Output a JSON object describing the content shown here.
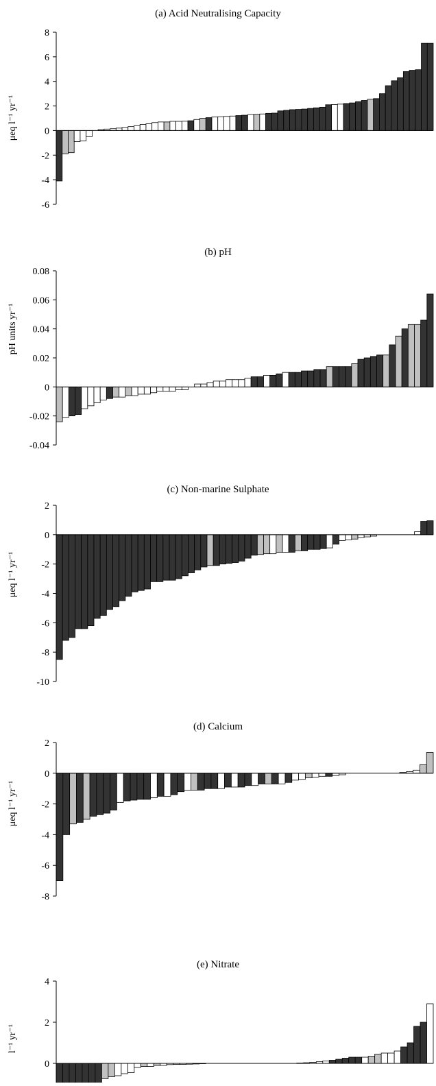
{
  "colors": {
    "dark": "#333333",
    "grey": "#c0c0c0",
    "white": "#ffffff",
    "outline": "#000000"
  },
  "chart_data": [
    {
      "type": "bar",
      "title": "(a) Acid Neutralising Capacity",
      "ylabel": "μeq l⁻¹ yr⁻¹",
      "ylim": [
        -6,
        8
      ],
      "yticks": [
        -6,
        -4,
        -2,
        0,
        2,
        4,
        6,
        8
      ],
      "ytick_labels": [
        "-6",
        "-4",
        "-2",
        "0",
        "2",
        "4",
        "6",
        "8"
      ],
      "values": [
        -4.1,
        -1.9,
        -1.8,
        -0.9,
        -0.85,
        -0.5,
        0,
        0.08,
        0.12,
        0.15,
        0.2,
        0.25,
        0.32,
        0.4,
        0.5,
        0.55,
        0.65,
        0.7,
        0.7,
        0.75,
        0.75,
        0.76,
        0.8,
        0.9,
        1.0,
        1.05,
        1.1,
        1.12,
        1.15,
        1.18,
        1.22,
        1.25,
        1.3,
        1.32,
        1.35,
        1.4,
        1.42,
        1.6,
        1.65,
        1.7,
        1.72,
        1.75,
        1.8,
        1.85,
        1.9,
        2.1,
        2.12,
        2.15,
        2.2,
        2.25,
        2.35,
        2.45,
        2.55,
        2.6,
        3.0,
        3.65,
        4.05,
        4.3,
        4.8,
        4.9,
        4.95,
        7.1,
        7.1
      ],
      "colors": [
        "dark",
        "grey",
        "grey",
        "white",
        "white",
        "white",
        "white",
        "white",
        "white",
        "white",
        "white",
        "white",
        "white",
        "white",
        "white",
        "white",
        "white",
        "white",
        "grey",
        "white",
        "white",
        "white",
        "dark",
        "white",
        "grey",
        "dark",
        "white",
        "white",
        "white",
        "white",
        "dark",
        "dark",
        "white",
        "grey",
        "white",
        "dark",
        "dark",
        "dark",
        "dark",
        "dark",
        "dark",
        "dark",
        "dark",
        "dark",
        "dark",
        "dark",
        "white",
        "white",
        "dark",
        "dark",
        "dark",
        "dark",
        "grey",
        "dark",
        "dark",
        "dark",
        "dark",
        "dark",
        "dark",
        "dark",
        "dark",
        "dark",
        "dark"
      ]
    },
    {
      "type": "bar",
      "title": "(b) pH",
      "ylabel": "pH units yr⁻¹",
      "ylim": [
        -0.04,
        0.08
      ],
      "yticks": [
        -0.04,
        -0.02,
        0,
        0.02,
        0.04,
        0.06,
        0.08
      ],
      "ytick_labels": [
        "-0.04",
        "-0.02",
        "0",
        "0.02",
        "0.04",
        "0.06",
        "0.08"
      ],
      "values": [
        -0.024,
        -0.021,
        -0.02,
        -0.019,
        -0.015,
        -0.013,
        -0.011,
        -0.009,
        -0.008,
        -0.007,
        -0.007,
        -0.006,
        -0.006,
        -0.005,
        -0.005,
        -0.004,
        -0.003,
        -0.003,
        -0.003,
        -0.002,
        -0.002,
        0,
        0.002,
        0.002,
        0.003,
        0.004,
        0.004,
        0.005,
        0.005,
        0.005,
        0.006,
        0.007,
        0.007,
        0.008,
        0.008,
        0.009,
        0.01,
        0.01,
        0.01,
        0.011,
        0.011,
        0.012,
        0.012,
        0.014,
        0.014,
        0.014,
        0.014,
        0.016,
        0.019,
        0.02,
        0.021,
        0.022,
        0.022,
        0.029,
        0.035,
        0.04,
        0.043,
        0.043,
        0.046,
        0.064
      ],
      "colors": [
        "grey",
        "white",
        "dark",
        "dark",
        "white",
        "white",
        "white",
        "white",
        "dark",
        "grey",
        "white",
        "grey",
        "white",
        "white",
        "white",
        "white",
        "white",
        "white",
        "white",
        "white",
        "white",
        "white",
        "white",
        "white",
        "white",
        "white",
        "white",
        "white",
        "white",
        "white",
        "white",
        "dark",
        "dark",
        "white",
        "dark",
        "dark",
        "white",
        "dark",
        "dark",
        "dark",
        "dark",
        "dark",
        "dark",
        "grey",
        "dark",
        "dark",
        "dark",
        "grey",
        "dark",
        "dark",
        "dark",
        "dark",
        "grey",
        "dark",
        "grey",
        "dark",
        "grey",
        "grey",
        "dark",
        "dark"
      ]
    },
    {
      "type": "bar",
      "title": "(c) Non-marine Sulphate",
      "ylabel": "μeq l⁻¹ yr⁻¹",
      "ylim": [
        -10,
        2
      ],
      "yticks": [
        -10,
        -8,
        -6,
        -4,
        -2,
        0,
        2
      ],
      "ytick_labels": [
        "-10",
        "-8",
        "-6",
        "-4",
        "-2",
        "0",
        "2"
      ],
      "values": [
        -8.5,
        -7.2,
        -7.0,
        -6.4,
        -6.4,
        -6.2,
        -5.7,
        -5.5,
        -5.1,
        -4.9,
        -4.5,
        -4.2,
        -3.9,
        -3.8,
        -3.7,
        -3.2,
        -3.2,
        -3.1,
        -3.1,
        -3.0,
        -2.8,
        -2.6,
        -2.4,
        -2.2,
        -2.1,
        -2.1,
        -2.0,
        -1.95,
        -1.9,
        -1.8,
        -1.6,
        -1.4,
        -1.35,
        -1.3,
        -1.3,
        -1.2,
        -1.2,
        -1.2,
        -1.1,
        -1.1,
        -1.0,
        -1.0,
        -0.95,
        -0.9,
        -0.65,
        -0.4,
        -0.35,
        -0.3,
        -0.2,
        -0.15,
        -0.1,
        0,
        0,
        0,
        0,
        0,
        0,
        0.2,
        0.9,
        0.95
      ],
      "colors": [
        "dark",
        "dark",
        "dark",
        "dark",
        "dark",
        "dark",
        "dark",
        "dark",
        "dark",
        "dark",
        "dark",
        "dark",
        "dark",
        "dark",
        "dark",
        "dark",
        "dark",
        "dark",
        "dark",
        "dark",
        "dark",
        "dark",
        "dark",
        "dark",
        "grey",
        "dark",
        "dark",
        "dark",
        "dark",
        "dark",
        "dark",
        "dark",
        "grey",
        "grey",
        "white",
        "grey",
        "white",
        "dark",
        "grey",
        "dark",
        "dark",
        "dark",
        "dark",
        "white",
        "dark",
        "white",
        "white",
        "grey",
        "white",
        "white",
        "white",
        "white",
        "white",
        "white",
        "white",
        "white",
        "white",
        "white",
        "dark",
        "dark"
      ]
    },
    {
      "type": "bar",
      "title": "(d) Calcium",
      "ylabel": "μeq l⁻¹ yr⁻¹",
      "ylim": [
        -8,
        2
      ],
      "yticks": [
        -8,
        -6,
        -4,
        -2,
        0,
        2
      ],
      "ytick_labels": [
        "-8",
        "-6",
        "-4",
        "-2",
        "0",
        "2"
      ],
      "values": [
        -7.0,
        -4.0,
        -3.3,
        -3.2,
        -3.0,
        -2.8,
        -2.7,
        -2.6,
        -2.4,
        -1.9,
        -1.8,
        -1.75,
        -1.7,
        -1.7,
        -1.6,
        -1.5,
        -1.5,
        -1.4,
        -1.2,
        -1.1,
        -1.1,
        -1.1,
        -1.0,
        -1.0,
        -1.0,
        -0.9,
        -0.9,
        -0.9,
        -0.8,
        -0.8,
        -0.7,
        -0.7,
        -0.7,
        -0.7,
        -0.6,
        -0.45,
        -0.4,
        -0.3,
        -0.25,
        -0.2,
        -0.2,
        -0.15,
        -0.1,
        0,
        0,
        0,
        0,
        0,
        0,
        0,
        0,
        0.05,
        0.1,
        0.2,
        0.55,
        1.35
      ],
      "colors": [
        "dark",
        "dark",
        "grey",
        "dark",
        "grey",
        "dark",
        "dark",
        "dark",
        "dark",
        "white",
        "dark",
        "dark",
        "dark",
        "dark",
        "white",
        "dark",
        "white",
        "dark",
        "dark",
        "white",
        "grey",
        "dark",
        "dark",
        "dark",
        "white",
        "dark",
        "white",
        "dark",
        "dark",
        "white",
        "dark",
        "grey",
        "dark",
        "white",
        "dark",
        "white",
        "white",
        "grey",
        "white",
        "white",
        "dark",
        "white",
        "white",
        "white",
        "white",
        "white",
        "white",
        "white",
        "white",
        "white",
        "white",
        "white",
        "white",
        "white",
        "grey",
        "grey"
      ]
    },
    {
      "type": "bar",
      "title": "(e) Nitrate",
      "ylabel": "l⁻¹ yr⁻¹",
      "ylim": [
        -1,
        4
      ],
      "yticks": [
        0,
        2,
        4
      ],
      "ytick_labels": [
        "0",
        "2",
        "4"
      ],
      "values": [
        -1.2,
        -1.2,
        -1.2,
        -1.2,
        -1.2,
        -1.2,
        -1.2,
        -0.75,
        -0.65,
        -0.6,
        -0.5,
        -0.45,
        -0.2,
        -0.15,
        -0.15,
        -0.1,
        -0.1,
        -0.06,
        -0.05,
        -0.05,
        -0.04,
        -0.03,
        -0.02,
        0,
        0,
        0,
        0,
        0,
        0,
        0,
        0,
        0,
        0,
        0,
        0,
        0,
        0,
        0.02,
        0.03,
        0.05,
        0.08,
        0.12,
        0.15,
        0.2,
        0.25,
        0.3,
        0.3,
        0.3,
        0.35,
        0.45,
        0.5,
        0.5,
        0.6,
        0.8,
        1.0,
        1.8,
        2.0,
        2.9
      ],
      "colors": [
        "dark",
        "dark",
        "dark",
        "dark",
        "dark",
        "dark",
        "dark",
        "grey",
        "grey",
        "white",
        "white",
        "white",
        "white",
        "grey",
        "white",
        "grey",
        "white",
        "white",
        "white",
        "white",
        "white",
        "white",
        "white",
        "white",
        "white",
        "white",
        "white",
        "white",
        "white",
        "white",
        "white",
        "white",
        "white",
        "white",
        "white",
        "white",
        "white",
        "white",
        "white",
        "white",
        "white",
        "white",
        "dark",
        "dark",
        "dark",
        "dark",
        "dark",
        "white",
        "grey",
        "grey",
        "white",
        "white",
        "white",
        "dark",
        "dark",
        "dark",
        "dark",
        "white"
      ]
    }
  ]
}
